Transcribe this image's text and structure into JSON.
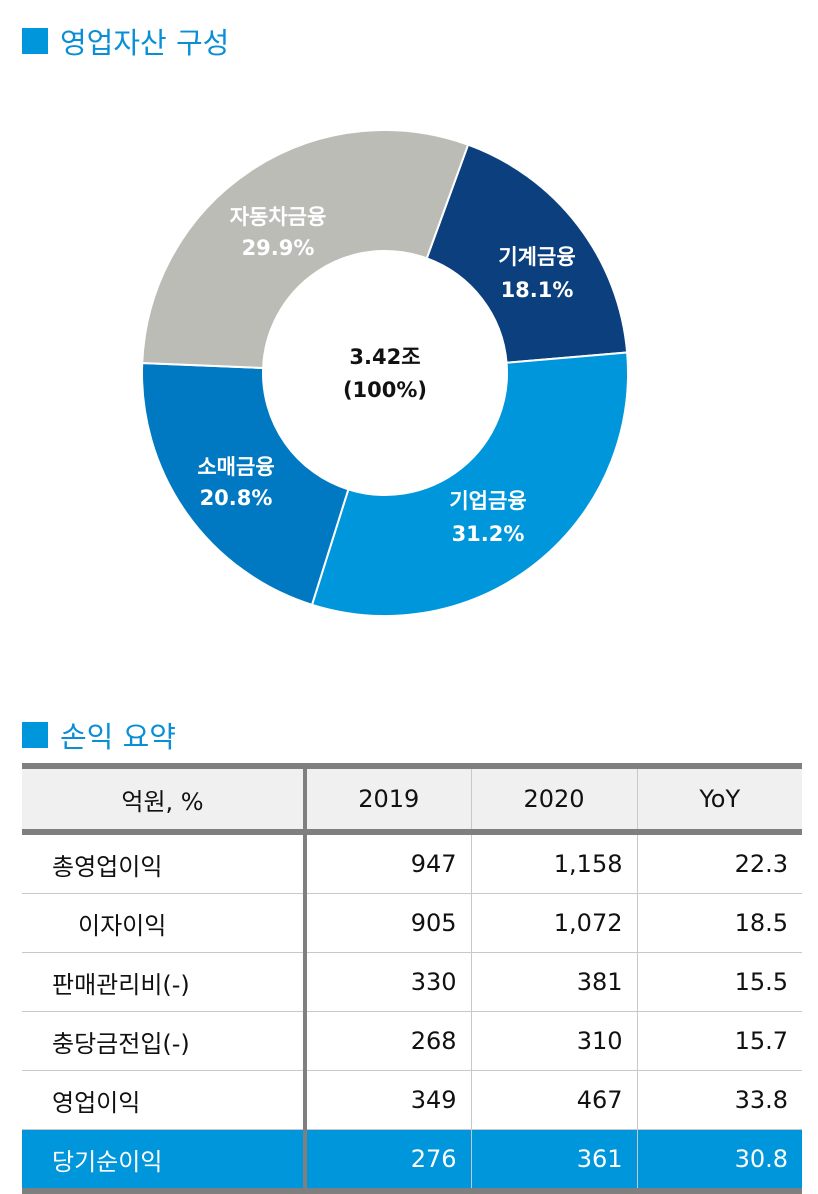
{
  "section1": {
    "title": "영업자산 구성"
  },
  "chart_data": {
    "type": "pie",
    "donut": true,
    "center_label": [
      "3.42조",
      "(100%)"
    ],
    "categories": [
      "기계금융",
      "기업금융",
      "소매금융",
      "자동차금융"
    ],
    "values": [
      18.1,
      31.2,
      20.8,
      29.9
    ],
    "value_labels": [
      "18.1%",
      "31.2%",
      "20.8%",
      "29.9%"
    ],
    "colors": [
      "#0b3f7e",
      "#0096db",
      "#0079c2",
      "#bcbcb7"
    ]
  },
  "section2": {
    "title": "손익 요약"
  },
  "table": {
    "headers": [
      "억원, %",
      "2019",
      "2020",
      "YoY"
    ],
    "rows": [
      {
        "label": "총영업이익",
        "v2019": "947",
        "v2020": "1,158",
        "yoy": "22.3"
      },
      {
        "label": "이자이익",
        "v2019": "905",
        "v2020": "1,072",
        "yoy": "18.5"
      },
      {
        "label": "판매관리비(-)",
        "v2019": "330",
        "v2020": "381",
        "yoy": "15.5"
      },
      {
        "label": "충당금전입(-)",
        "v2019": "268",
        "v2020": "310",
        "yoy": "15.7"
      },
      {
        "label": "영업이익",
        "v2019": "349",
        "v2020": "467",
        "yoy": "33.8"
      },
      {
        "label": "당기순이익",
        "v2019": "276",
        "v2020": "361",
        "yoy": "30.8"
      }
    ],
    "highlight_color": "#0096db"
  }
}
